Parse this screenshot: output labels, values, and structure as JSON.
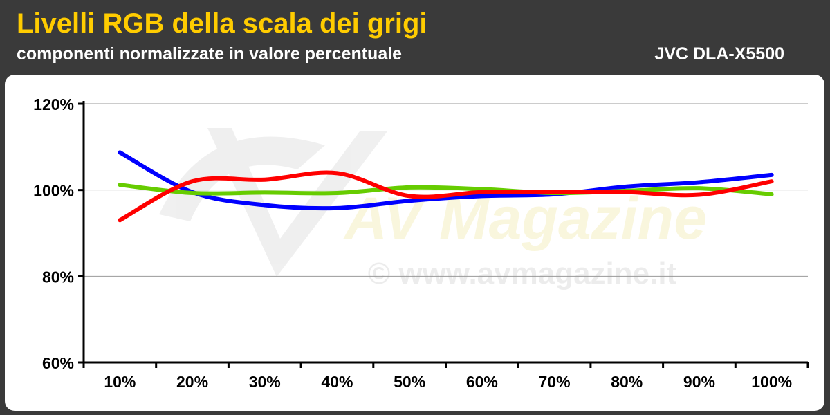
{
  "header": {
    "title": "Livelli RGB della scala dei grigi",
    "subtitle": "componenti normalizzate in valore percentuale",
    "model": "JVC DLA-X5500"
  },
  "watermark": {
    "logo_text": "AV Magazine",
    "url_text": "© www.avmagazine.it"
  },
  "colors": {
    "background": "#3a3a3a",
    "title": "#ffcc00",
    "panel": "#ffffff",
    "red": "#ff0000",
    "green": "#66cc00",
    "blue": "#0000ff"
  },
  "chart_data": {
    "type": "line",
    "title": "Livelli RGB della scala dei grigi",
    "subtitle": "componenti normalizzate in valore percentuale",
    "categories": [
      "10%",
      "20%",
      "30%",
      "40%",
      "50%",
      "60%",
      "70%",
      "80%",
      "90%",
      "100%"
    ],
    "y_ticks": [
      "60%",
      "80%",
      "100%",
      "120%"
    ],
    "ylim": [
      60,
      120
    ],
    "grid": true,
    "smooth": true,
    "series": [
      {
        "color": "#0000ff",
        "values": [
          108.7,
          99.5,
          96.5,
          95.8,
          97.5,
          98.6,
          99.0,
          100.8,
          101.8,
          103.5
        ]
      },
      {
        "color": "#66cc00",
        "values": [
          101.2,
          99.3,
          99.4,
          99.3,
          100.6,
          100.2,
          99.3,
          99.8,
          100.4,
          99.0
        ]
      },
      {
        "color": "#ff0000",
        "values": [
          93.0,
          102.0,
          102.4,
          103.9,
          98.6,
          99.5,
          99.6,
          99.5,
          98.9,
          102.0
        ]
      }
    ]
  }
}
